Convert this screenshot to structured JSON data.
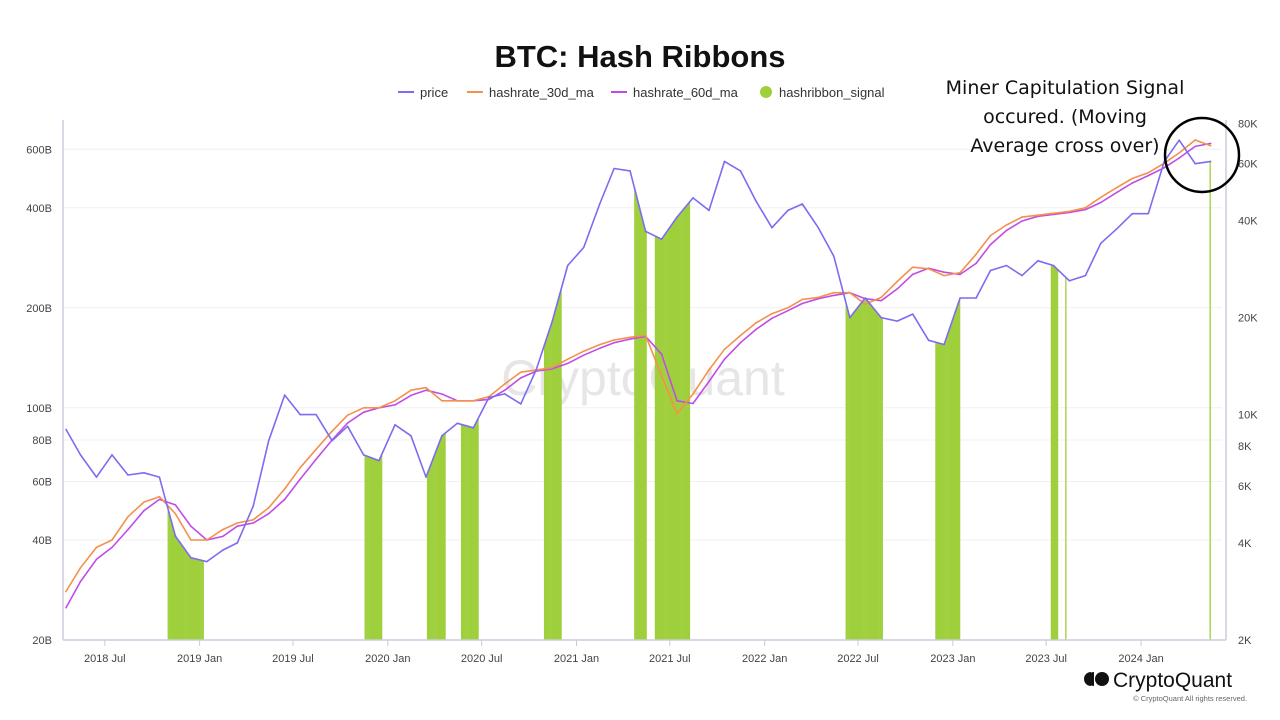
{
  "chart_data": {
    "type": "line",
    "title": "BTC: Hash Ribbons",
    "legend": {
      "placement": "top-center",
      "entries": [
        {
          "name": "price",
          "color": "#7b6cf0",
          "marker": "line"
        },
        {
          "name": "hashrate_30d_ma",
          "color": "#f4914a",
          "marker": "line"
        },
        {
          "name": "hashrate_60d_ma",
          "color": "#c04ce8",
          "marker": "line"
        },
        {
          "name": "hashribbon_signal",
          "color": "#9fd03c",
          "marker": "dot"
        }
      ]
    },
    "x_range": [
      "2018-04-11",
      "2024-06-06"
    ],
    "x_ticks": [
      {
        "date": "2018-07-01",
        "label": "2018 Jul"
      },
      {
        "date": "2019-01-01",
        "label": "2019 Jan"
      },
      {
        "date": "2019-07-01",
        "label": "2019 Jul"
      },
      {
        "date": "2020-01-01",
        "label": "2020 Jan"
      },
      {
        "date": "2020-07-01",
        "label": "2020 Jul"
      },
      {
        "date": "2021-01-01",
        "label": "2021 Jan"
      },
      {
        "date": "2021-07-01",
        "label": "2021 Jul"
      },
      {
        "date": "2022-01-01",
        "label": "2022 Jan"
      },
      {
        "date": "2022-07-01",
        "label": "2022 Jul"
      },
      {
        "date": "2023-01-01",
        "label": "2023 Jan"
      },
      {
        "date": "2023-07-01",
        "label": "2023 Jul"
      },
      {
        "date": "2024-01-01",
        "label": "2024 Jan"
      }
    ],
    "left_axis": {
      "scale": "log",
      "unit": "B",
      "ylim": [
        20,
        735
      ],
      "ticks": [
        {
          "v": 20,
          "label": "20B"
        },
        {
          "v": 40,
          "label": "40B"
        },
        {
          "v": 60,
          "label": "60B"
        },
        {
          "v": 80,
          "label": "80B"
        },
        {
          "v": 100,
          "label": "100B"
        },
        {
          "v": 200,
          "label": "200B"
        },
        {
          "v": 400,
          "label": "400B"
        },
        {
          "v": 600,
          "label": "600B"
        }
      ]
    },
    "right_axis": {
      "scale": "log",
      "ylim": [
        2000,
        82000
      ],
      "ticks": [
        {
          "v": 2000,
          "label": "2K"
        },
        {
          "v": 4000,
          "label": "4K"
        },
        {
          "v": 6000,
          "label": "6K"
        },
        {
          "v": 8000,
          "label": "8K"
        },
        {
          "v": 10000,
          "label": "10K"
        },
        {
          "v": 20000,
          "label": "20K"
        },
        {
          "v": 40000,
          "label": "40K"
        },
        {
          "v": 60000,
          "label": "60K"
        },
        {
          "v": 80000,
          "label": "80K"
        }
      ]
    },
    "grid": true,
    "months": [
      "2018-04",
      "2018-05",
      "2018-06",
      "2018-07",
      "2018-08",
      "2018-09",
      "2018-10",
      "2018-11",
      "2018-12",
      "2019-01",
      "2019-02",
      "2019-03",
      "2019-04",
      "2019-05",
      "2019-06",
      "2019-07",
      "2019-08",
      "2019-09",
      "2019-10",
      "2019-11",
      "2019-12",
      "2020-01",
      "2020-02",
      "2020-03",
      "2020-04",
      "2020-05",
      "2020-06",
      "2020-07",
      "2020-08",
      "2020-09",
      "2020-10",
      "2020-11",
      "2020-12",
      "2021-01",
      "2021-02",
      "2021-03",
      "2021-04",
      "2021-05",
      "2021-06",
      "2021-07",
      "2021-08",
      "2021-09",
      "2021-10",
      "2021-11",
      "2021-12",
      "2022-01",
      "2022-02",
      "2022-03",
      "2022-04",
      "2022-05",
      "2022-06",
      "2022-07",
      "2022-08",
      "2022-09",
      "2022-10",
      "2022-11",
      "2022-12",
      "2023-01",
      "2023-02",
      "2023-03",
      "2023-04",
      "2023-05",
      "2023-06",
      "2023-07",
      "2023-08",
      "2023-09",
      "2023-10",
      "2023-11",
      "2023-12",
      "2024-01",
      "2024-02",
      "2024-03",
      "2024-04",
      "2024-05"
    ],
    "series": [
      {
        "name": "price",
        "axis": "right",
        "values": [
          9000,
          7500,
          6400,
          7500,
          6500,
          6600,
          6400,
          4200,
          3600,
          3500,
          3800,
          4000,
          5200,
          8300,
          11500,
          10000,
          10000,
          8300,
          9200,
          7500,
          7200,
          9300,
          8600,
          6400,
          8600,
          9400,
          9100,
          11300,
          11600,
          10800,
          13800,
          19500,
          29000,
          33000,
          45000,
          58000,
          57000,
          37000,
          35000,
          41000,
          47000,
          43000,
          61000,
          57000,
          46000,
          38000,
          43000,
          45000,
          38000,
          31000,
          20000,
          23000,
          20000,
          19500,
          20500,
          17000,
          16500,
          23000,
          23000,
          28000,
          29000,
          27000,
          30000,
          29000,
          26000,
          27000,
          34000,
          37700,
          42000,
          42000,
          61000,
          71000,
          60000,
          61000
        ]
      },
      {
        "name": "hashrate_30d_ma",
        "axis": "left",
        "values": [
          28,
          33,
          38,
          40,
          47,
          52,
          54,
          48,
          40,
          40,
          43,
          45,
          46,
          50,
          57,
          66,
          75,
          85,
          95,
          100,
          100,
          105,
          113,
          115,
          105,
          105,
          105,
          108,
          118,
          128,
          130,
          132,
          140,
          148,
          155,
          160,
          163,
          165,
          125,
          96,
          110,
          130,
          150,
          165,
          180,
          192,
          200,
          212,
          215,
          222,
          222,
          205,
          215,
          240,
          265,
          262,
          250,
          255,
          290,
          330,
          355,
          375,
          380,
          385,
          390,
          400,
          430,
          460,
          490,
          510,
          545,
          585,
          640,
          615
        ]
      },
      {
        "name": "hashrate_60d_ma",
        "axis": "left",
        "values": [
          25,
          30,
          35,
          38,
          43,
          49,
          53,
          51,
          44,
          40,
          41,
          44,
          45,
          48,
          53,
          61,
          70,
          80,
          90,
          97,
          100,
          102,
          109,
          113,
          110,
          105,
          105,
          106,
          113,
          123,
          129,
          131,
          136,
          144,
          151,
          157,
          161,
          164,
          145,
          105,
          103,
          120,
          140,
          157,
          172,
          186,
          196,
          206,
          213,
          218,
          222,
          213,
          210,
          228,
          252,
          263,
          256,
          252,
          272,
          310,
          342,
          365,
          377,
          382,
          387,
          395,
          415,
          445,
          475,
          500,
          528,
          565,
          612,
          625
        ]
      }
    ],
    "hashribbon_signal_periods": [
      [
        "2018-11-01",
        "2019-01-08"
      ],
      [
        "2019-11-18",
        "2019-12-21"
      ],
      [
        "2020-03-18",
        "2020-04-22"
      ],
      [
        "2020-05-23",
        "2020-06-25"
      ],
      [
        "2020-10-31",
        "2020-12-03"
      ],
      [
        "2021-04-24",
        "2021-05-17"
      ],
      [
        "2021-06-03",
        "2021-08-08"
      ],
      [
        "2022-06-08",
        "2022-08-18"
      ],
      [
        "2022-11-29",
        "2023-01-14"
      ],
      [
        "2023-07-11",
        "2023-07-24"
      ],
      [
        "2023-08-08",
        "2023-08-09"
      ],
      [
        "2024-05-14",
        "2024-05-15"
      ]
    ],
    "annotation": {
      "lines": [
        "Miner Capitulation Signal",
        "occured. (Moving",
        "Average cross over)"
      ]
    }
  },
  "watermark": "CryptoQuant",
  "footer": {
    "brand": "CryptoQuant",
    "copyright": "© CryptoQuant All rights reserved."
  }
}
